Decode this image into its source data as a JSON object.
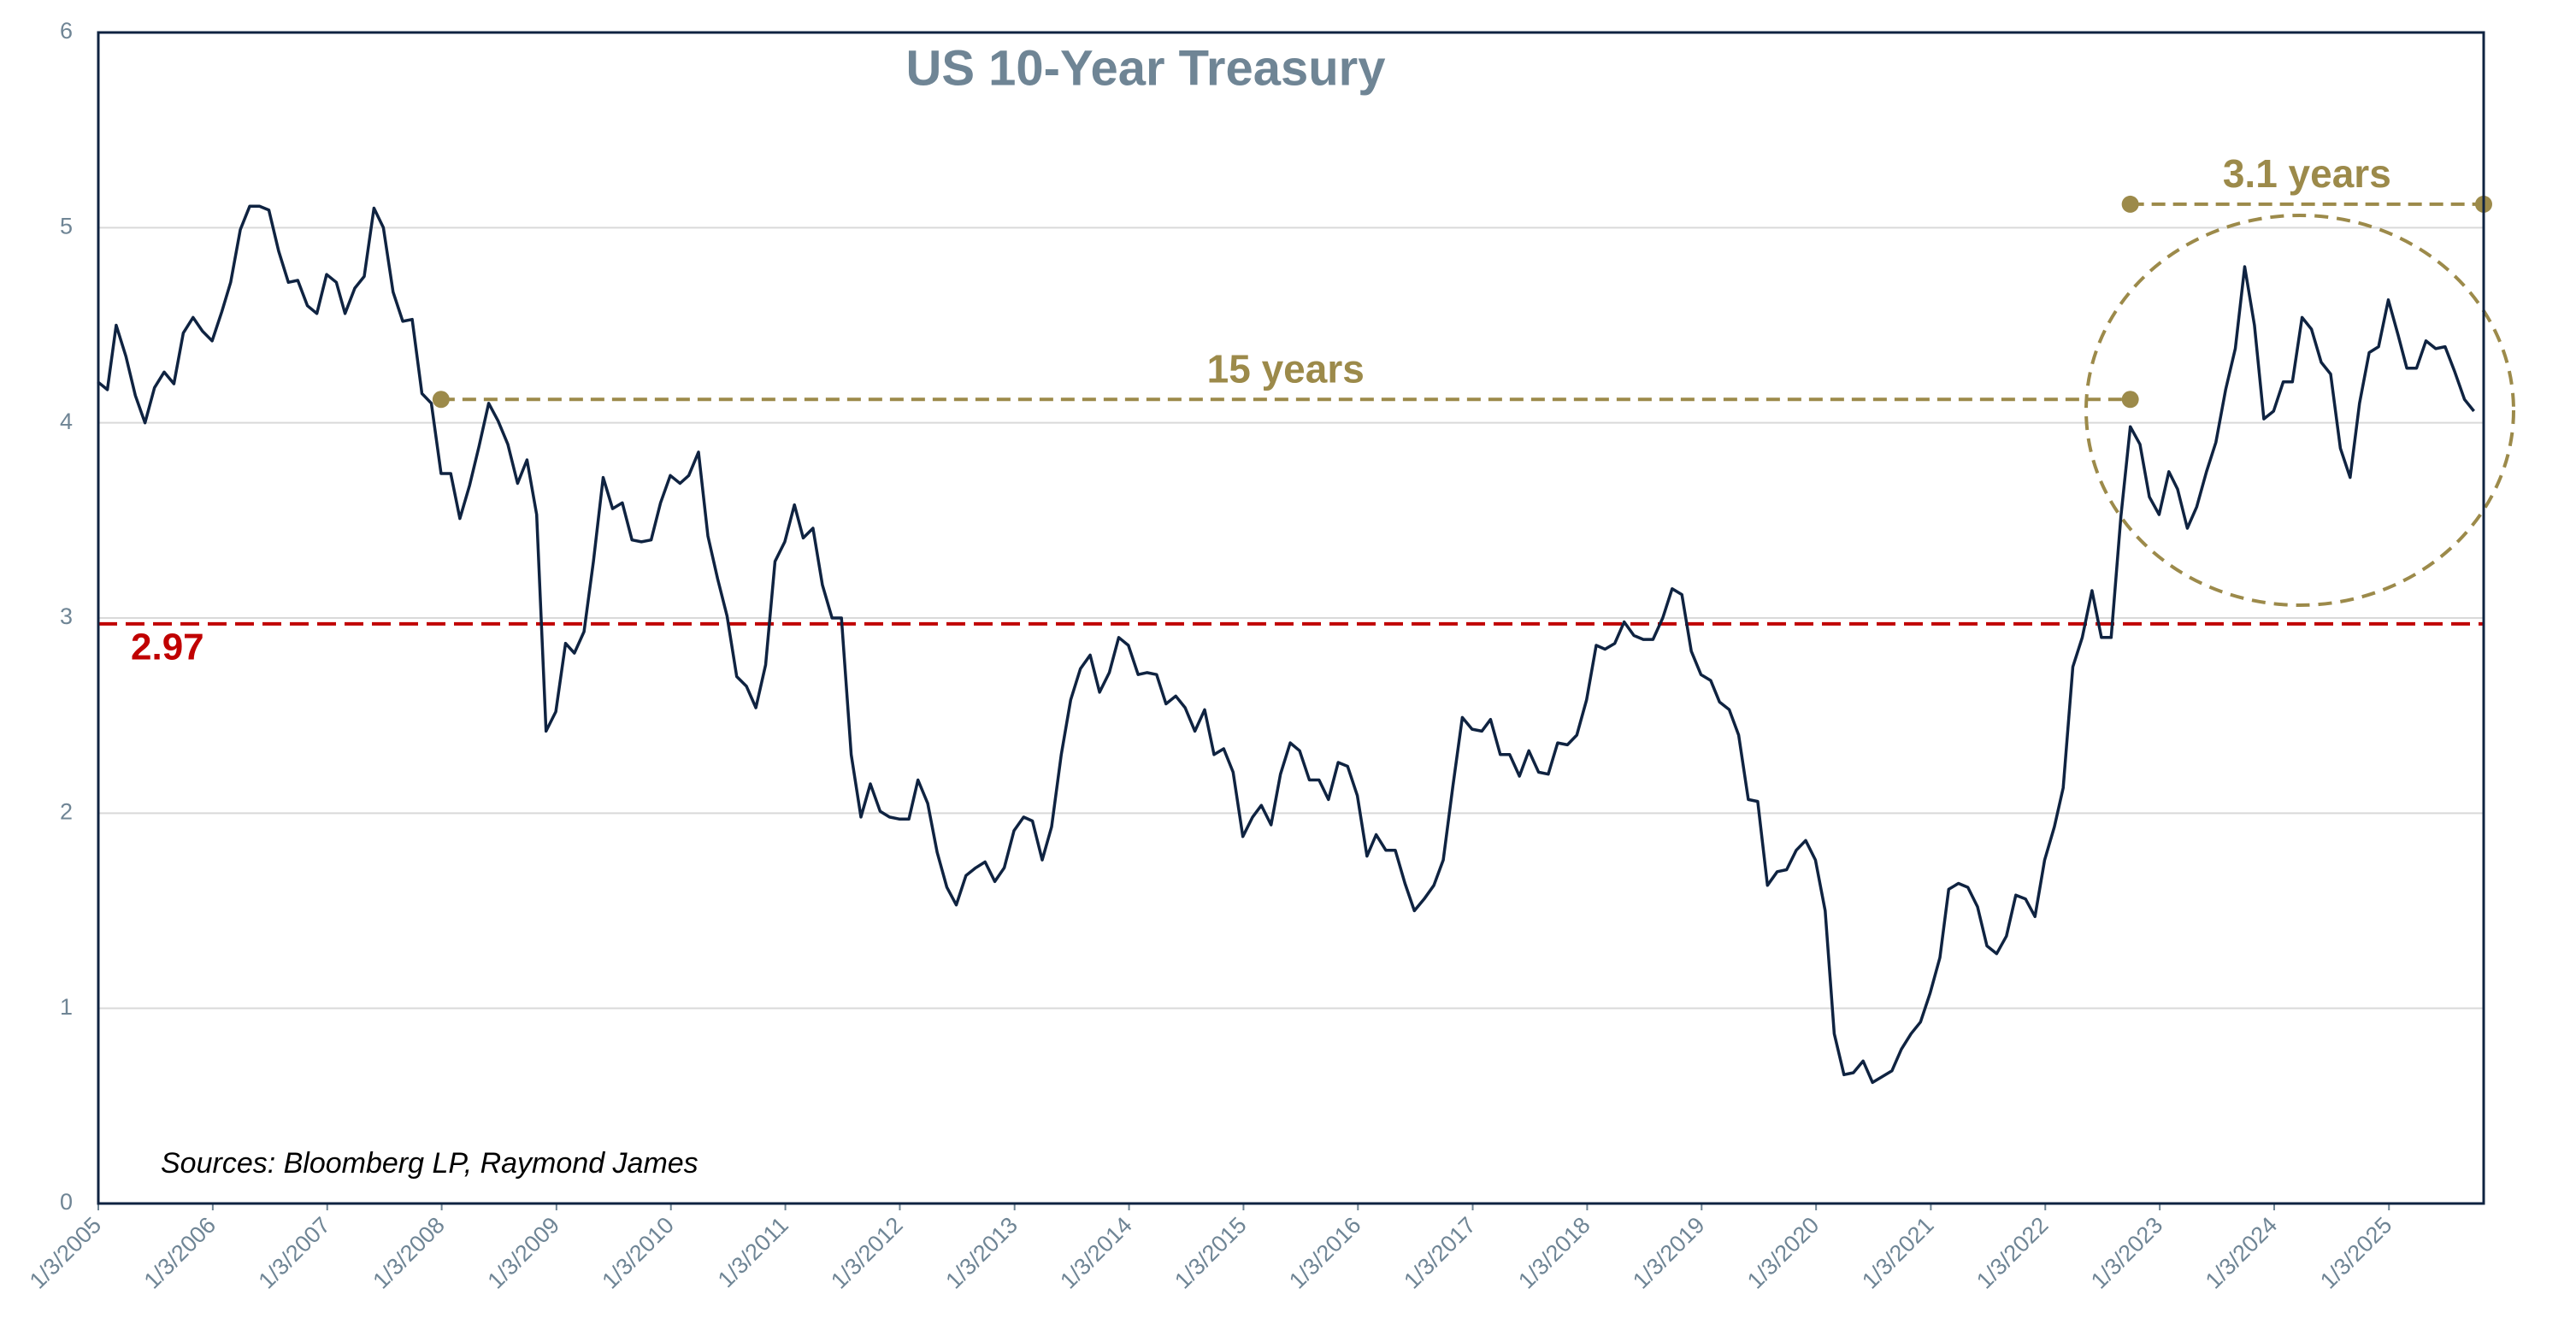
{
  "chart_data": {
    "type": "line",
    "title": "US 10-Year Treasury",
    "color": "#0f2341",
    "x": [
      "2005-01",
      "2005-02",
      "2005-03",
      "2005-04",
      "2005-05",
      "2005-06",
      "2005-07",
      "2005-08",
      "2005-09",
      "2005-10",
      "2005-11",
      "2005-12",
      "2006-01",
      "2006-02",
      "2006-03",
      "2006-04",
      "2006-05",
      "2006-06",
      "2006-07",
      "2006-08",
      "2006-09",
      "2006-10",
      "2006-11",
      "2006-12",
      "2007-01",
      "2007-02",
      "2007-03",
      "2007-04",
      "2007-05",
      "2007-06",
      "2007-07",
      "2007-08",
      "2007-09",
      "2007-10",
      "2007-11",
      "2007-12",
      "2008-01",
      "2008-02",
      "2008-03",
      "2008-04",
      "2008-05",
      "2008-06",
      "2008-07",
      "2008-08",
      "2008-09",
      "2008-10",
      "2008-11",
      "2008-12",
      "2009-01",
      "2009-02",
      "2009-03",
      "2009-04",
      "2009-05",
      "2009-06",
      "2009-07",
      "2009-08",
      "2009-09",
      "2009-10",
      "2009-11",
      "2009-12",
      "2010-01",
      "2010-02",
      "2010-03",
      "2010-04",
      "2010-05",
      "2010-06",
      "2010-07",
      "2010-08",
      "2010-09",
      "2010-10",
      "2010-11",
      "2010-12",
      "2011-01",
      "2011-02",
      "2011-03",
      "2011-04",
      "2011-05",
      "2011-06",
      "2011-07",
      "2011-08",
      "2011-09",
      "2011-10",
      "2011-11",
      "2011-12",
      "2012-01",
      "2012-02",
      "2012-03",
      "2012-04",
      "2012-05",
      "2012-06",
      "2012-07",
      "2012-08",
      "2012-09",
      "2012-10",
      "2012-11",
      "2012-12",
      "2013-01",
      "2013-02",
      "2013-03",
      "2013-04",
      "2013-05",
      "2013-06",
      "2013-07",
      "2013-08",
      "2013-09",
      "2013-10",
      "2013-11",
      "2013-12",
      "2014-01",
      "2014-02",
      "2014-03",
      "2014-04",
      "2014-05",
      "2014-06",
      "2014-07",
      "2014-08",
      "2014-09",
      "2014-10",
      "2014-11",
      "2014-12",
      "2015-01",
      "2015-02",
      "2015-03",
      "2015-04",
      "2015-05",
      "2015-06",
      "2015-07",
      "2015-08",
      "2015-09",
      "2015-10",
      "2015-11",
      "2015-12",
      "2016-01",
      "2016-02",
      "2016-03",
      "2016-04",
      "2016-05",
      "2016-06",
      "2016-07",
      "2016-08",
      "2016-09",
      "2016-10",
      "2016-11",
      "2016-12",
      "2017-01",
      "2017-02",
      "2017-03",
      "2017-04",
      "2017-05",
      "2017-06",
      "2017-07",
      "2017-08",
      "2017-09",
      "2017-10",
      "2017-11",
      "2017-12",
      "2018-01",
      "2018-02",
      "2018-03",
      "2018-04",
      "2018-05",
      "2018-06",
      "2018-07",
      "2018-08",
      "2018-09",
      "2018-10",
      "2018-11",
      "2018-12",
      "2019-01",
      "2019-02",
      "2019-03",
      "2019-04",
      "2019-05",
      "2019-06",
      "2019-07",
      "2019-08",
      "2019-09",
      "2019-10",
      "2019-11",
      "2019-12",
      "2020-01",
      "2020-02",
      "2020-03",
      "2020-04",
      "2020-05",
      "2020-06",
      "2020-07",
      "2020-08",
      "2020-09",
      "2020-10",
      "2020-11",
      "2020-12",
      "2021-01",
      "2021-02",
      "2021-03",
      "2021-04",
      "2021-05",
      "2021-06",
      "2021-07",
      "2021-08",
      "2021-09",
      "2021-10",
      "2021-11",
      "2021-12",
      "2022-01",
      "2022-02",
      "2022-03",
      "2022-04",
      "2022-05",
      "2022-06",
      "2022-07",
      "2022-08",
      "2022-09",
      "2022-10",
      "2022-11",
      "2022-12",
      "2023-01",
      "2023-02",
      "2023-03",
      "2023-04",
      "2023-05",
      "2023-06",
      "2023-07",
      "2023-08",
      "2023-09",
      "2023-10",
      "2023-11",
      "2023-12",
      "2024-01",
      "2024-02",
      "2024-03",
      "2024-04",
      "2024-05",
      "2024-06",
      "2024-07",
      "2024-08",
      "2024-09",
      "2024-10",
      "2024-11",
      "2024-12",
      "2025-01",
      "2025-02",
      "2025-03",
      "2025-04",
      "2025-05",
      "2025-06",
      "2025-07",
      "2025-08",
      "2025-09",
      "2025-10"
    ],
    "values": [
      4.21,
      4.17,
      4.5,
      4.34,
      4.14,
      4.0,
      4.18,
      4.26,
      4.2,
      4.46,
      4.54,
      4.47,
      4.42,
      4.57,
      4.72,
      4.99,
      5.11,
      5.11,
      5.09,
      4.88,
      4.72,
      4.73,
      4.6,
      4.56,
      4.76,
      4.72,
      4.56,
      4.69,
      4.75,
      5.1,
      5.0,
      4.67,
      4.52,
      4.53,
      4.15,
      4.1,
      3.74,
      3.74,
      3.51,
      3.68,
      3.88,
      4.1,
      4.01,
      3.89,
      3.69,
      3.81,
      3.53,
      2.42,
      2.52,
      2.87,
      2.82,
      2.93,
      3.29,
      3.72,
      3.56,
      3.59,
      3.4,
      3.39,
      3.4,
      3.59,
      3.73,
      3.69,
      3.73,
      3.85,
      3.42,
      3.2,
      3.01,
      2.7,
      2.65,
      2.54,
      2.76,
      3.29,
      3.39,
      3.58,
      3.41,
      3.46,
      3.17,
      3.0,
      3.0,
      2.3,
      1.98,
      2.15,
      2.01,
      1.98,
      1.97,
      1.97,
      2.17,
      2.05,
      1.8,
      1.62,
      1.53,
      1.68,
      1.72,
      1.75,
      1.65,
      1.72,
      1.91,
      1.98,
      1.96,
      1.76,
      1.93,
      2.3,
      2.58,
      2.74,
      2.81,
      2.62,
      2.72,
      2.9,
      2.86,
      2.71,
      2.72,
      2.71,
      2.56,
      2.6,
      2.54,
      2.42,
      2.53,
      2.3,
      2.33,
      2.21,
      1.88,
      1.98,
      2.04,
      1.94,
      2.2,
      2.36,
      2.32,
      2.17,
      2.17,
      2.07,
      2.26,
      2.24,
      2.09,
      1.78,
      1.89,
      1.81,
      1.81,
      1.64,
      1.5,
      1.56,
      1.63,
      1.76,
      2.14,
      2.49,
      2.43,
      2.42,
      2.48,
      2.3,
      2.3,
      2.19,
      2.32,
      2.21,
      2.2,
      2.36,
      2.35,
      2.4,
      2.58,
      2.86,
      2.84,
      2.87,
      2.98,
      2.91,
      2.89,
      2.89,
      3.0,
      3.15,
      3.12,
      2.83,
      2.71,
      2.68,
      2.57,
      2.53,
      2.4,
      2.07,
      2.06,
      1.63,
      1.7,
      1.71,
      1.81,
      1.86,
      1.76,
      1.5,
      0.87,
      0.66,
      0.67,
      0.73,
      0.62,
      0.65,
      0.68,
      0.79,
      0.87,
      0.93,
      1.08,
      1.26,
      1.61,
      1.64,
      1.62,
      1.52,
      1.32,
      1.28,
      1.37,
      1.58,
      1.56,
      1.47,
      1.76,
      1.93,
      2.13,
      2.75,
      2.9,
      3.14,
      2.9,
      2.9,
      3.52,
      3.98,
      3.89,
      3.62,
      3.53,
      3.75,
      3.66,
      3.46,
      3.57,
      3.75,
      3.9,
      4.17,
      4.38,
      4.8,
      4.5,
      4.02,
      4.06,
      4.21,
      4.21,
      4.54,
      4.48,
      4.31,
      4.25,
      3.87,
      3.72,
      4.1,
      4.36,
      4.39,
      4.63,
      4.45,
      4.28,
      4.28,
      4.42,
      4.38,
      4.39,
      4.26,
      4.12,
      4.06
    ],
    "xlim": [
      "2005-01-03",
      "2025-11-01"
    ],
    "xticks": [
      {
        "value": "2005-01-03",
        "label": "1/3/2005"
      },
      {
        "value": "2006-01-03",
        "label": "1/3/2006"
      },
      {
        "value": "2007-01-03",
        "label": "1/3/2007"
      },
      {
        "value": "2008-01-03",
        "label": "1/3/2008"
      },
      {
        "value": "2009-01-03",
        "label": "1/3/2009"
      },
      {
        "value": "2010-01-03",
        "label": "1/3/2010"
      },
      {
        "value": "2011-01-03",
        "label": "1/3/2011"
      },
      {
        "value": "2012-01-03",
        "label": "1/3/2012"
      },
      {
        "value": "2013-01-03",
        "label": "1/3/2013"
      },
      {
        "value": "2014-01-03",
        "label": "1/3/2014"
      },
      {
        "value": "2015-01-03",
        "label": "1/3/2015"
      },
      {
        "value": "2016-01-03",
        "label": "1/3/2016"
      },
      {
        "value": "2017-01-03",
        "label": "1/3/2017"
      },
      {
        "value": "2018-01-03",
        "label": "1/3/2018"
      },
      {
        "value": "2019-01-03",
        "label": "1/3/2019"
      },
      {
        "value": "2020-01-03",
        "label": "1/3/2020"
      },
      {
        "value": "2021-01-03",
        "label": "1/3/2021"
      },
      {
        "value": "2022-01-03",
        "label": "1/3/2022"
      },
      {
        "value": "2023-01-03",
        "label": "1/3/2023"
      },
      {
        "value": "2024-01-03",
        "label": "1/3/2024"
      },
      {
        "value": "2025-01-03",
        "label": "1/3/2025"
      }
    ],
    "ylim": [
      0,
      6
    ],
    "yticks": [
      0,
      1,
      2,
      3,
      4,
      5,
      6
    ],
    "grid": true,
    "reference_line": {
      "value": 2.97,
      "label": "2.97",
      "color": "#c00000"
    },
    "spans": [
      {
        "label": "15 years",
        "y": 4.12,
        "start": "2008-01",
        "end": "2022-10",
        "color": "#9c8a4a"
      },
      {
        "label": "3.1 years",
        "y": 5.12,
        "start": "2022-10",
        "end": "2025-11",
        "color": "#9c8a4a"
      }
    ],
    "source": "Sources: Bloomberg LP, Raymond James"
  }
}
